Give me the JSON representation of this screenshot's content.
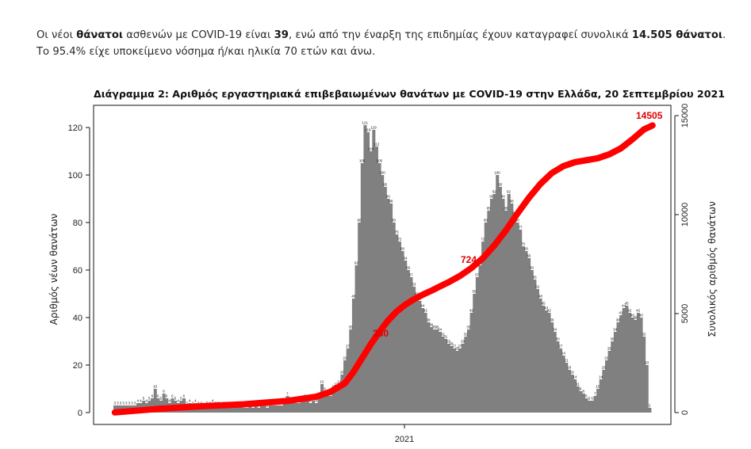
{
  "intro": {
    "t1": "Οι νέοι ",
    "b1": "θάνατοι",
    "t2": " ασθενών με COVID-19 είναι ",
    "b2": "39",
    "t3": ", ενώ από την έναρξη της επιδημίας έχουν καταγραφεί συνολικά ",
    "b3": "14.505 θάνατοι",
    "t4": ".  Το 95.4% είχε υποκείμενο νόσημα ή/και ηλικία 70 ετών και άνω."
  },
  "chart_data": {
    "type": "bar",
    "title": "Διάγραμμα 2: Αριθμός εργαστηριακά επιβεβαιωμένων θανάτων με COVID-19 στην Ελλάδα, 20 Σεπτεμβρίου 2021",
    "ylabel": "Αριθμός νέων θανάτων",
    "y2label": "Συνολικός αριθμός θανάτων",
    "x_tick_labels": [
      "2021"
    ],
    "y_ticks": [
      "0",
      "20",
      "40",
      "60",
      "80",
      "100",
      "120"
    ],
    "y2_ticks": [
      "0",
      "5000",
      "10000",
      "15000"
    ],
    "ylim": [
      0,
      125
    ],
    "y2lim": [
      0,
      15000
    ],
    "grid": false,
    "bar_color": "#808080",
    "line_color": "#ff0000",
    "annotations": [
      "350",
      "724",
      "14505"
    ],
    "series": [
      {
        "type": "bar",
        "values": [
          3,
          3,
          3,
          3,
          3,
          3,
          3,
          3,
          4,
          4,
          5,
          4,
          5,
          6,
          10,
          6,
          5,
          8,
          6,
          4,
          6,
          5,
          4,
          5,
          6,
          3,
          4,
          3,
          4,
          3,
          3,
          2,
          3,
          3,
          4,
          3,
          3,
          2,
          3,
          3,
          2,
          3,
          2,
          3,
          3,
          2,
          2,
          3,
          2,
          3,
          2,
          3,
          3,
          2,
          3,
          3,
          3,
          3,
          3,
          4,
          7,
          5,
          4,
          4,
          4,
          5,
          6,
          5,
          4,
          5,
          4,
          6,
          12,
          9,
          7,
          7,
          10,
          11,
          12,
          16,
          22,
          27,
          35,
          48,
          62,
          80,
          105,
          121,
          118,
          110,
          119,
          112,
          105,
          100,
          95,
          90,
          88,
          80,
          75,
          72,
          68,
          64,
          60,
          57,
          53,
          49,
          47,
          44,
          42,
          38,
          36,
          35,
          35,
          34,
          32,
          31,
          29,
          28,
          27,
          26,
          27,
          29,
          32,
          35,
          42,
          50,
          57,
          62,
          72,
          80,
          85,
          90,
          92,
          100,
          95,
          90,
          85,
          92,
          88,
          83,
          80,
          77,
          70,
          68,
          65,
          60,
          56,
          52,
          48,
          45,
          43,
          42,
          38,
          34,
          30,
          27,
          24,
          21,
          18,
          16,
          14,
          11,
          9,
          8,
          6,
          5,
          5,
          7,
          10,
          14,
          18,
          22,
          26,
          30,
          34,
          38,
          41,
          44,
          45,
          42,
          40,
          39,
          42,
          40,
          32,
          20,
          2
        ],
        "labels": [
          "3",
          "3",
          "3",
          "3",
          "3",
          "3",
          "3",
          "3",
          "4",
          "4",
          "5",
          "4",
          "5",
          "6",
          "10",
          "6",
          "5",
          "8",
          "6",
          "4",
          "6",
          "5",
          "4",
          "5",
          "6",
          "3",
          "4",
          "3",
          "4",
          "3",
          "3",
          "2",
          "3",
          "3",
          "4",
          "3",
          "3",
          "2",
          "3",
          "3",
          "2",
          "3",
          "2",
          "3",
          "3",
          "2",
          "2",
          "3",
          "2",
          "3",
          "2",
          "3",
          "3",
          "2",
          "3",
          "3",
          "3",
          "3",
          "3",
          "4",
          "7",
          "5",
          "4",
          "4",
          "4",
          "5",
          "6",
          "5",
          "4",
          "5",
          "4",
          "6",
          "12",
          "9",
          "7",
          "7",
          "10",
          "11",
          "12",
          "16",
          "22",
          "27",
          "35",
          "48",
          "62",
          "80",
          "105",
          "121",
          "118",
          "110",
          "119",
          "112",
          "105",
          "100",
          "95",
          "90",
          "88",
          "80",
          "75",
          "72",
          "68",
          "64",
          "60",
          "57",
          "53",
          "49",
          "47",
          "44",
          "42",
          "38",
          "36",
          "35",
          "35",
          "34",
          "32",
          "31",
          "29",
          "28",
          "27",
          "26",
          "27",
          "29",
          "32",
          "35",
          "42",
          "50",
          "57",
          "62",
          "72",
          "80",
          "85",
          "90",
          "92",
          "100",
          "95",
          "90",
          "85",
          "92",
          "88",
          "83",
          "80",
          "77",
          "70",
          "68",
          "65",
          "60",
          "56",
          "52",
          "48",
          "45",
          "43",
          "42",
          "38",
          "34",
          "30",
          "27",
          "24",
          "21",
          "18",
          "16",
          "14",
          "11",
          "9",
          "8",
          "6",
          "5",
          "5",
          "7",
          "10",
          "14",
          "18",
          "22",
          "26",
          "30",
          "34",
          "38",
          "41",
          "44",
          "45",
          "42",
          "40",
          "39",
          "42",
          "40",
          "32",
          "20",
          "2"
        ]
      },
      {
        "type": "line",
        "axis": "y2",
        "x_index": [
          0,
          15,
          30,
          45,
          60,
          70,
          75,
          80,
          83,
          86,
          89,
          92,
          95,
          98,
          101,
          104,
          107,
          110,
          113,
          116,
          120,
          124,
          128,
          132,
          136,
          140,
          144,
          148,
          152,
          156,
          160,
          164,
          168,
          172,
          176,
          180,
          184,
          187
        ],
        "values": [
          10,
          190,
          320,
          420,
          590,
          800,
          1050,
          1480,
          2050,
          2750,
          3450,
          4080,
          4650,
          5100,
          5450,
          5720,
          5950,
          6150,
          6370,
          6580,
          6900,
          7300,
          7800,
          8450,
          9200,
          10050,
          10850,
          11550,
          12100,
          12450,
          12650,
          12750,
          12850,
          13050,
          13350,
          13800,
          14300,
          14505
        ]
      }
    ]
  }
}
